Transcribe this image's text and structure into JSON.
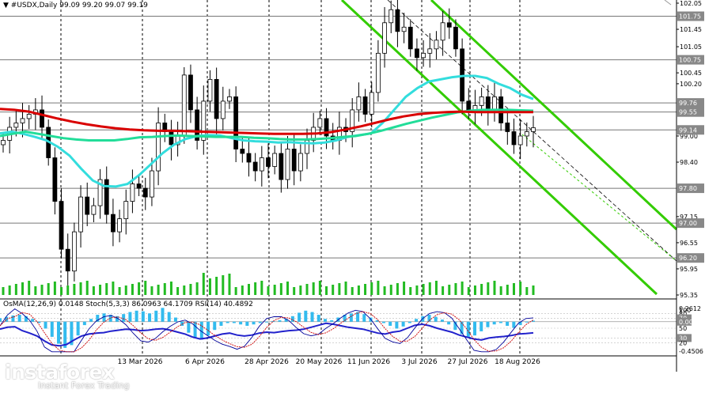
{
  "header": {
    "symbol": "#USDX,Daily",
    "ohlc": "99.09 99.20 99.07 99.19",
    "indicators": "OsMA(12,26,9) 0.0148  Stoch(5,3,3) 86.0963 64.1709  RSI(14) 40.4892"
  },
  "watermark": {
    "brand": "instaforex",
    "tagline": "Instant Forex Trading"
  },
  "colors": {
    "ema200": "#d90000",
    "ema144": "#22dd99",
    "ema50": "#33dddd",
    "channel": "#33cc00",
    "volume": "#22bb22",
    "osma": "#33bbee",
    "stoch_main": "#000099",
    "stoch_signal": "#cc0000",
    "rsi": "#2222cc"
  },
  "chart_data": {
    "type": "candlestick",
    "ylim": [
      95.35,
      102.05
    ],
    "y_ticks": [
      "102.05",
      "101.75",
      "101.45",
      "101.05",
      "100.75",
      "100.45",
      "100.20",
      "99.76",
      "99.55",
      "99.14",
      "99.00",
      "98.40",
      "97.80",
      "97.15",
      "97.00",
      "96.55",
      "96.20",
      "95.95",
      "95.35"
    ],
    "highlight_levels": [
      {
        "value": 101.75,
        "label": "101.75"
      },
      {
        "value": 100.75,
        "label": "100.75"
      },
      {
        "value": 99.76,
        "label": "99.76"
      },
      {
        "value": 99.55,
        "label": "99.55"
      },
      {
        "value": 99.14,
        "label": "99.14"
      },
      {
        "value": 97.8,
        "label": "97.80"
      },
      {
        "value": 97.0,
        "label": "97.00"
      },
      {
        "value": 96.2,
        "label": "96.20"
      }
    ],
    "x_labels": [
      "13 Mar 2026",
      "6 Apr 2026",
      "28 Apr 2026",
      "20 May 2026",
      "11 Jun 2026",
      "3 Jul 2026",
      "27 Jul 2026",
      "18 Aug 2026"
    ],
    "closes": [
      98.9,
      99.2,
      99.3,
      99.4,
      99.5,
      99.6,
      99.2,
      98.5,
      97.5,
      96.4,
      95.9,
      96.8,
      97.6,
      97.2,
      97.4,
      98.0,
      97.2,
      96.8,
      97.1,
      97.5,
      97.9,
      97.8,
      97.6,
      98.2,
      99.3,
      99.1,
      98.8,
      99.0,
      100.4,
      99.6,
      98.9,
      99.8,
      100.3,
      99.4,
      99.8,
      99.9,
      98.7,
      98.6,
      98.4,
      98.2,
      98.5,
      98.3,
      98.6,
      98.0,
      98.7,
      98.2,
      98.6,
      98.9,
      99.2,
      99.4,
      99.0,
      98.9,
      99.2,
      99.1,
      99.6,
      99.9,
      99.5,
      100.0,
      100.9,
      101.6,
      101.9,
      101.4,
      101.5,
      101.0,
      100.8,
      100.9,
      101.0,
      101.2,
      101.6,
      101.5,
      101.0,
      99.8,
      99.6,
      99.7,
      99.9,
      99.6,
      99.9,
      99.3,
      99.1,
      98.8,
      99.0,
      99.1,
      99.19
    ],
    "ema50": [
      99.06,
      99.1,
      99.05,
      98.98,
      98.9,
      98.75,
      98.55,
      98.25,
      97.98,
      97.85,
      97.84,
      97.9,
      98.1,
      98.35,
      98.6,
      98.8,
      98.93,
      99.0,
      99.02,
      99.01,
      98.95,
      98.9,
      98.88,
      98.87,
      98.85,
      98.86,
      98.84,
      98.83,
      98.85,
      98.9,
      98.98,
      99.02,
      99.06,
      99.3,
      99.6,
      99.9,
      100.1,
      100.25,
      100.3,
      100.35,
      100.38,
      100.38,
      100.33,
      100.2,
      100.1,
      99.95,
      99.85
    ],
    "ema144": [
      99.0,
      99.05,
      99.1,
      99.05,
      99.0,
      98.95,
      98.92,
      98.9,
      98.9,
      98.9,
      98.93,
      98.97,
      98.98,
      99.0,
      99.01,
      99.0,
      98.99,
      98.98,
      98.98,
      98.98,
      98.96,
      98.95,
      98.93,
      98.92,
      98.92,
      98.93,
      98.95,
      98.98,
      99.0,
      99.05,
      99.12,
      99.2,
      99.28,
      99.35,
      99.42,
      99.48,
      99.54,
      99.58,
      99.6,
      99.6,
      99.6,
      99.59,
      99.58
    ],
    "ema200": [
      99.62,
      99.6,
      99.56,
      99.48,
      99.4,
      99.33,
      99.27,
      99.22,
      99.18,
      99.15,
      99.13,
      99.12,
      99.12,
      99.11,
      99.1,
      99.09,
      99.08,
      99.07,
      99.06,
      99.05,
      99.05,
      99.05,
      99.06,
      99.09,
      99.15,
      99.22,
      99.3,
      99.38,
      99.45,
      99.5,
      99.53,
      99.55,
      99.56,
      99.55,
      99.55,
      99.55,
      99.55,
      99.55
    ]
  },
  "lower_panel": {
    "y_labels": [
      "0.2612",
      "100",
      "80",
      "70",
      "0.00",
      "50",
      "30",
      "20",
      "-0.4506"
    ],
    "osma": [
      0.05,
      0.07,
      0.09,
      0.1,
      0.08,
      0.04,
      -0.02,
      -0.1,
      -0.22,
      -0.32,
      -0.38,
      -0.34,
      -0.2,
      -0.05,
      0.04,
      0.1,
      0.12,
      0.1,
      0.08,
      0.11,
      0.14,
      0.16,
      0.15,
      0.12,
      0.16,
      0.2,
      0.14,
      0.06,
      -0.06,
      -0.16,
      -0.24,
      -0.26,
      -0.2,
      -0.12,
      -0.06,
      -0.02,
      -0.02,
      -0.04,
      -0.06,
      -0.04,
      -0.02,
      0.0,
      0.01,
      0.02,
      0.04,
      0.08,
      0.13,
      0.16,
      0.14,
      0.1,
      0.04,
      0.02,
      0.06,
      0.1,
      0.12,
      0.14,
      0.11,
      0.06,
      0.02,
      -0.02,
      -0.06,
      -0.1,
      -0.07,
      -0.02,
      0.04,
      0.08,
      0.1,
      0.07,
      0.03,
      -0.04,
      -0.12,
      -0.18,
      -0.22,
      -0.2,
      -0.14,
      -0.08,
      -0.04,
      -0.02,
      -0.06,
      -0.09,
      -0.05,
      -0.01,
      0.0148
    ],
    "rsi": [
      48,
      52,
      53,
      45,
      40,
      34,
      24,
      16,
      14,
      17,
      26,
      34,
      38,
      40,
      41,
      44,
      46,
      48,
      47,
      45,
      46,
      48,
      49,
      46,
      42,
      38,
      32,
      28,
      30,
      34,
      38,
      40,
      36,
      34,
      36,
      40,
      42,
      41,
      43,
      45,
      46,
      48,
      52,
      56,
      60,
      58,
      55,
      52,
      50,
      48,
      44,
      40,
      38,
      42,
      44,
      50,
      56,
      58,
      55,
      50,
      46,
      42,
      36,
      32,
      28,
      26,
      30,
      32,
      33,
      35,
      38,
      39,
      40.49
    ]
  }
}
